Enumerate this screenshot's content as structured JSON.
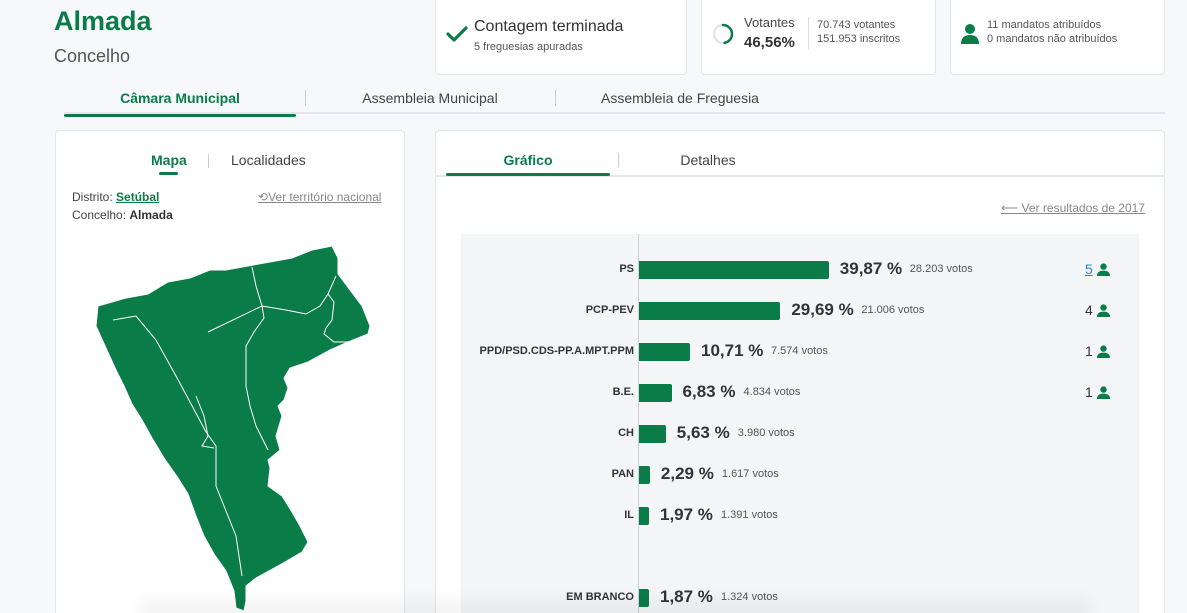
{
  "header": {
    "title": "Almada",
    "subtitle": "Concelho"
  },
  "status_card": {
    "main": "Contagem terminada",
    "sub": "5 freguesias apuradas"
  },
  "turnout_card": {
    "label": "Votantes",
    "percent": "46,56%",
    "percent_value": 46.56,
    "voters": "70.743 votantes",
    "registered": "151.953 inscritos"
  },
  "mandates_card": {
    "assigned": "11 mandatos atribuídos",
    "unassigned": "0 mandatos não atribuídos"
  },
  "tabs": [
    "Câmara Municipal",
    "Assembleia Municipal",
    "Assembleia de Freguesia"
  ],
  "left_panel": {
    "tabs": [
      "Mapa",
      "Localidades"
    ],
    "district_label": "Distrito:",
    "district_value": "Setúbal",
    "council_label": "Concelho:",
    "council_value": "Almada",
    "national_link": "Ver território nacional"
  },
  "right_panel": {
    "tabs": [
      "Gráfico",
      "Detalhes"
    ],
    "previous_link": "Ver resultados de 2017"
  },
  "colors": {
    "brand": "#0a7c48",
    "link": "#1d8fd8"
  },
  "chart_data": {
    "type": "bar",
    "orientation": "horizontal",
    "categories": [
      "PS",
      "PCP-PEV",
      "PPD/PSD.CDS-PP.A.MPT.PPM",
      "B.E.",
      "CH",
      "PAN",
      "IL",
      "EM BRANCO"
    ],
    "values": [
      39.87,
      29.69,
      10.71,
      6.83,
      5.63,
      2.29,
      1.97,
      1.87
    ],
    "labels": [
      "39,87 %",
      "29,69 %",
      "10,71 %",
      "6,83 %",
      "5,63 %",
      "2,29 %",
      "1,97 %",
      "1,87 %"
    ],
    "votes": [
      "28.203 votos",
      "21.006 votos",
      "7.574 votos",
      "4.834 votos",
      "3.980 votos",
      "1.617 votos",
      "1.391 votos",
      "1.324 votos"
    ],
    "seats": [
      "5",
      "4",
      "1",
      "1",
      "",
      "",
      "",
      ""
    ],
    "xlim": [
      0,
      100
    ]
  }
}
